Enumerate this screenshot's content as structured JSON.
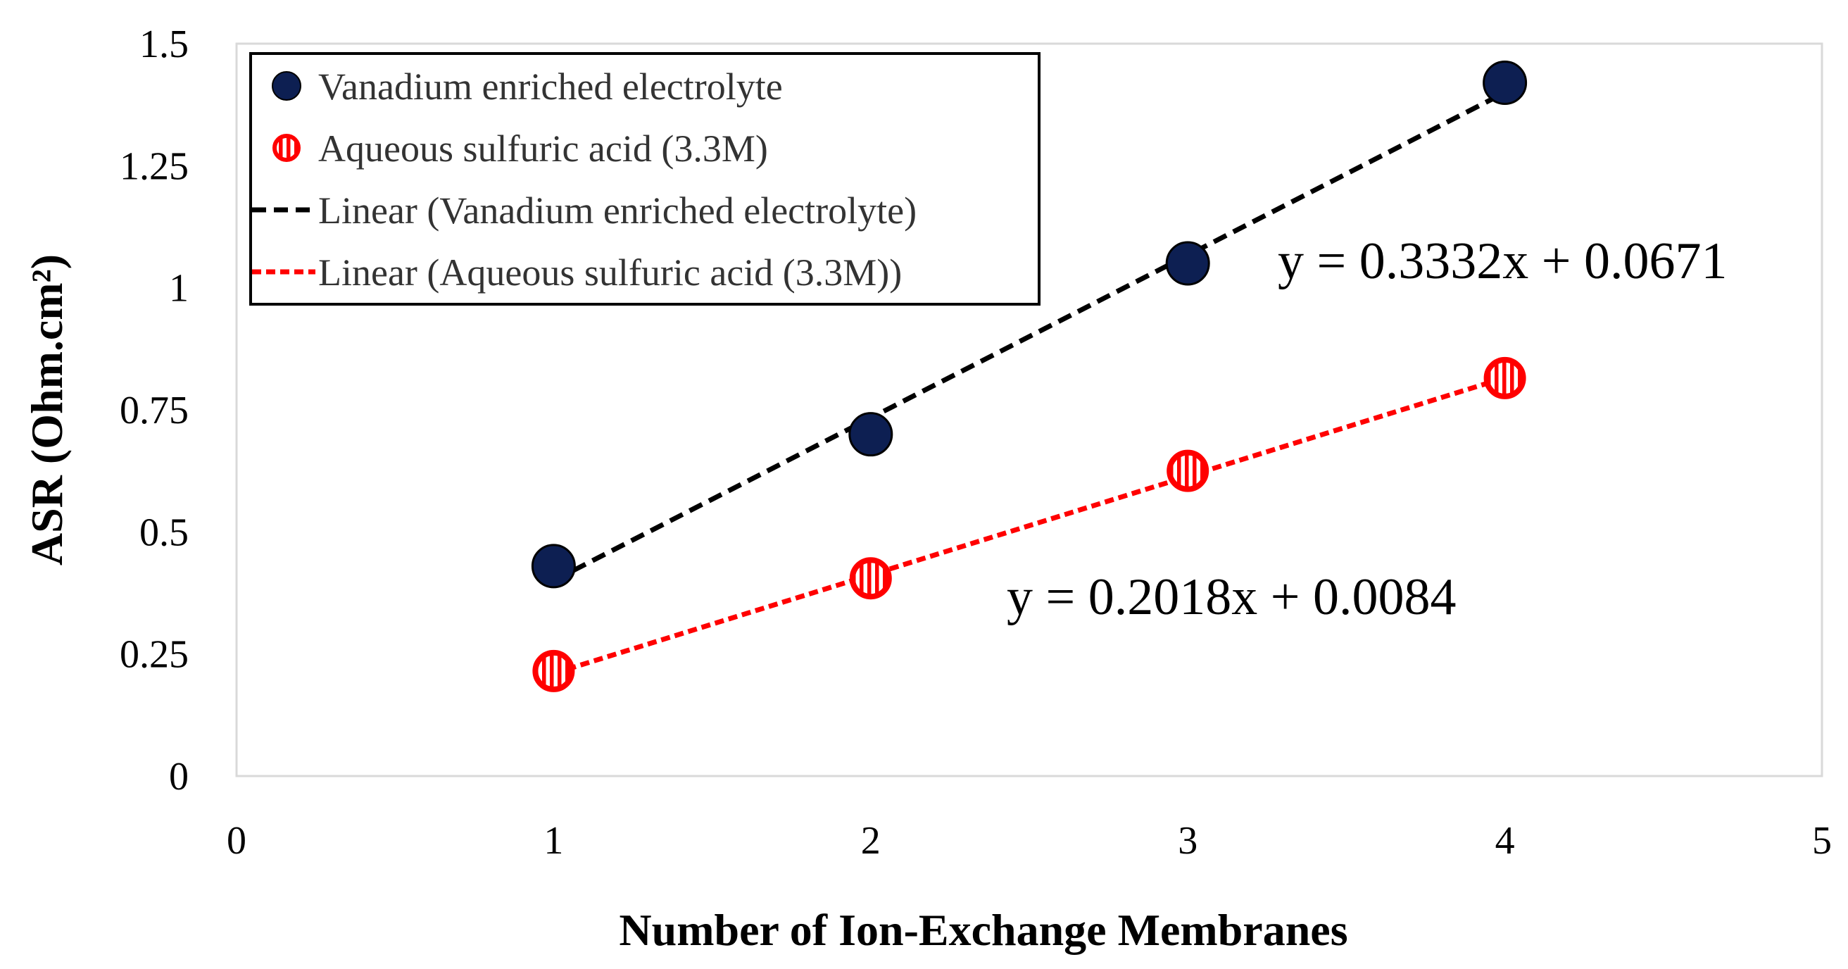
{
  "chart_data": {
    "type": "scatter",
    "xlabel": "Number of Ion-Exchange Membranes",
    "ylabel": "ASR (Ohm.cm²)",
    "xlim": [
      0,
      5
    ],
    "ylim": [
      0,
      1.5
    ],
    "x_ticks": [
      "0",
      "1",
      "2",
      "3",
      "4",
      "5"
    ],
    "y_ticks": [
      "0",
      "0.25",
      "0.5",
      "0.75",
      "1",
      "1.25",
      "1.5"
    ],
    "grid": false,
    "legend_position": "top-left",
    "series": [
      {
        "name": "Vanadium enriched electrolyte",
        "color": "#0d1f52",
        "marker": "filled-circle",
        "x": [
          1,
          2,
          3,
          4
        ],
        "y": [
          0.43,
          0.7,
          1.05,
          1.42
        ]
      },
      {
        "name": "Aqueous sulfuric acid (3.3M)",
        "color": "#ff0000",
        "marker": "hatched-circle",
        "x": [
          1,
          2,
          3,
          4
        ],
        "y": [
          0.215,
          0.405,
          0.625,
          0.815
        ]
      }
    ],
    "trendlines": [
      {
        "name": "Linear (Vanadium enriched electrolyte)",
        "color": "#000000",
        "slope": 0.3332,
        "intercept": 0.0671,
        "x_range": [
          1,
          4
        ],
        "equation": "y = 0.3332x + 0.0671"
      },
      {
        "name": "Linear (Aqueous sulfuric acid (3.3M))",
        "color": "#ff0000",
        "slope": 0.2018,
        "intercept": 0.0084,
        "x_range": [
          1,
          4
        ],
        "equation": "y = 0.2018x + 0.0084"
      }
    ]
  }
}
